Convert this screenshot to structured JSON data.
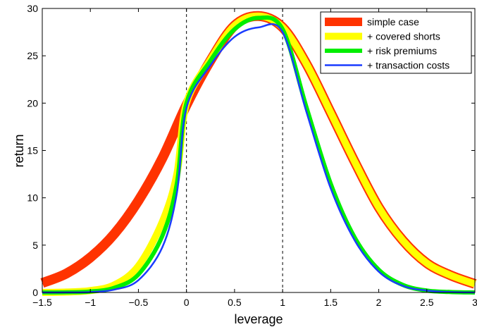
{
  "chart_data": {
    "type": "line",
    "xlabel": "leverage",
    "ylabel": "return",
    "xlim": [
      -1.5,
      3
    ],
    "ylim": [
      0,
      30
    ],
    "xticks": [
      "−1.5",
      "−1",
      "−0.5",
      "0",
      "0.5",
      "1",
      "1.5",
      "2",
      "2.5",
      "3"
    ],
    "yticks": [
      "0",
      "5",
      "10",
      "15",
      "20",
      "25",
      "30"
    ],
    "grid": false,
    "legend_position": "top-right",
    "vlines": [
      0,
      1
    ],
    "series": [
      {
        "name": "simple case",
        "color": "#ff3300",
        "x": [
          -1.5,
          -1.25,
          -1.0,
          -0.75,
          -0.5,
          -0.25,
          0.0,
          0.25,
          0.5,
          0.75,
          1.0,
          1.25,
          1.5,
          1.75,
          2.0,
          2.25,
          2.5,
          2.75,
          3.0
        ],
        "y": [
          1.0,
          2.0,
          3.7,
          6.2,
          9.7,
          14.2,
          19.8,
          24.5,
          28.2,
          29.2,
          28.0,
          24.1,
          19.0,
          13.8,
          9.0,
          5.5,
          3.1,
          1.8,
          0.9
        ]
      },
      {
        "name": "+ covered shorts",
        "color": "#ffff00",
        "x": [
          -1.5,
          -1.25,
          -1.0,
          -0.75,
          -0.5,
          -0.25,
          -0.1,
          0.0,
          0.25,
          0.5,
          0.75,
          1.0,
          1.25,
          1.5,
          1.75,
          2.0,
          2.25,
          2.5,
          2.75,
          3.0
        ],
        "y": [
          0.0,
          0.05,
          0.2,
          0.8,
          2.8,
          7.5,
          12.5,
          20.0,
          24.6,
          28.2,
          29.2,
          28.0,
          24.1,
          19.0,
          13.8,
          9.0,
          5.5,
          3.1,
          1.8,
          0.9
        ]
      },
      {
        "name": "+ risk premiums",
        "color": "#00ee00",
        "x": [
          -1.5,
          -1.25,
          -1.0,
          -0.75,
          -0.5,
          -0.25,
          -0.1,
          0.0,
          0.25,
          0.5,
          0.75,
          1.0,
          1.25,
          1.5,
          1.75,
          2.0,
          2.25,
          2.5,
          2.75,
          3.0
        ],
        "y": [
          0.0,
          0.02,
          0.1,
          0.5,
          1.9,
          6.0,
          11.5,
          20.0,
          24.5,
          27.8,
          29.0,
          27.8,
          19.5,
          11.5,
          5.8,
          2.4,
          0.8,
          0.2,
          0.05,
          0.0
        ]
      },
      {
        "name": "+ transaction costs",
        "color": "#1a3cff",
        "x": [
          -1.5,
          -1.25,
          -1.0,
          -0.75,
          -0.5,
          -0.25,
          -0.1,
          0.0,
          0.25,
          0.5,
          0.75,
          1.0,
          1.25,
          1.5,
          1.75,
          2.0,
          2.25,
          2.5,
          2.75,
          3.0
        ],
        "y": [
          0.0,
          0.01,
          0.05,
          0.3,
          1.3,
          4.8,
          10.5,
          19.5,
          24.0,
          27.0,
          28.0,
          27.5,
          19.0,
          11.0,
          5.5,
          2.2,
          0.7,
          0.2,
          0.05,
          0.0
        ]
      }
    ]
  }
}
